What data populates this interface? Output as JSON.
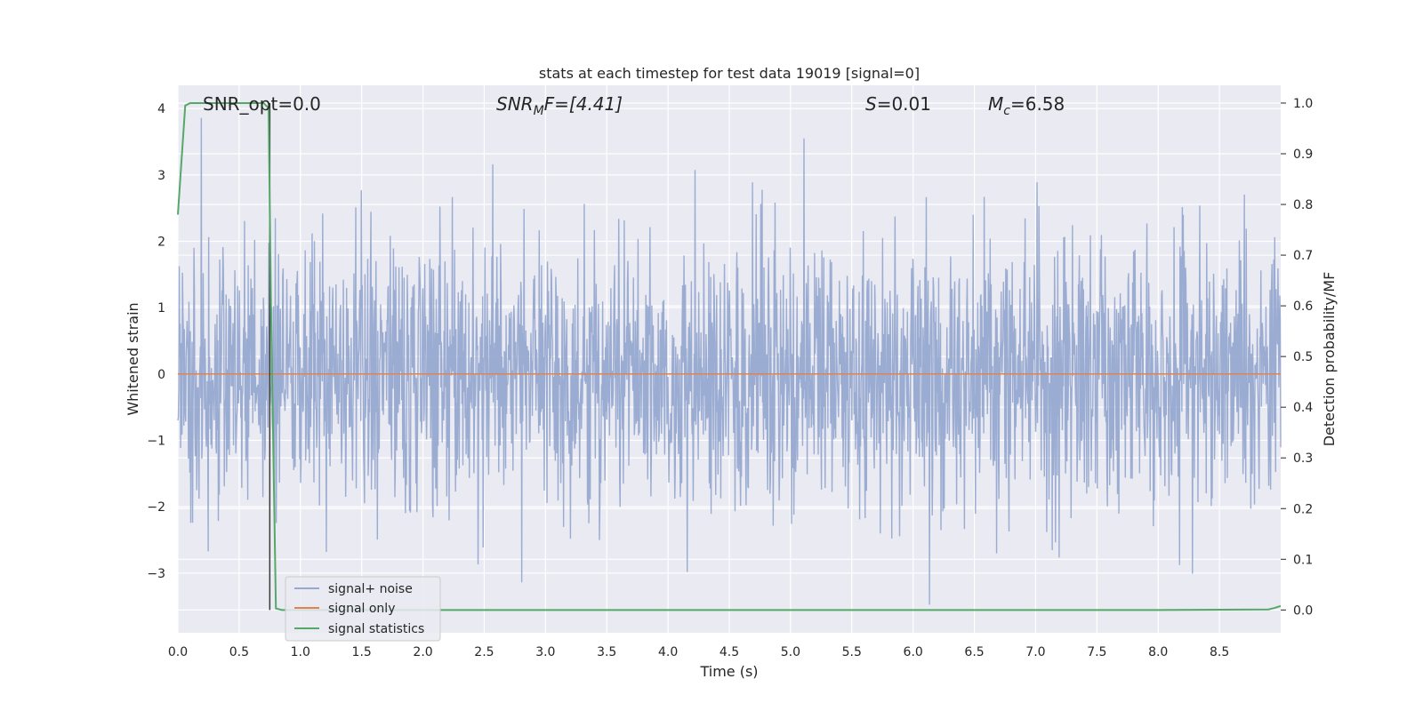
{
  "chart_data": {
    "type": "line",
    "title": "stats at each timestep for test data 19019 [signal=0]",
    "xlabel": "Time (s)",
    "ylabel": "Whitened strain",
    "y2label": "Detection probability/MF",
    "xlim": [
      0.0,
      9.0
    ],
    "ylim": [
      -3.9,
      4.35
    ],
    "y2lim": [
      -0.045,
      1.035
    ],
    "xticks": [
      "0.0",
      "0.5",
      "1.0",
      "1.5",
      "2.0",
      "2.5",
      "3.0",
      "3.5",
      "4.0",
      "4.5",
      "5.0",
      "5.5",
      "6.0",
      "6.5",
      "7.0",
      "7.5",
      "8.0",
      "8.5"
    ],
    "xtick_values": [
      0.0,
      0.5,
      1.0,
      1.5,
      2.0,
      2.5,
      3.0,
      3.5,
      4.0,
      4.5,
      5.0,
      5.5,
      6.0,
      6.5,
      7.0,
      7.5,
      8.0,
      8.5
    ],
    "yticks": [
      "4",
      "3",
      "2",
      "1",
      "0",
      "−1",
      "−2",
      "−3"
    ],
    "ytick_values": [
      4,
      3,
      2,
      1,
      0,
      -1,
      -2,
      -3
    ],
    "y2ticks": [
      "1.0",
      "0.9",
      "0.8",
      "0.7",
      "0.6",
      "0.5",
      "0.4",
      "0.3",
      "0.2",
      "0.1",
      "0.0"
    ],
    "y2tick_values": [
      1.0,
      0.9,
      0.8,
      0.7,
      0.6,
      0.5,
      0.4,
      0.3,
      0.2,
      0.1,
      0.0
    ],
    "grid": true,
    "legend_position": "lower-left",
    "annotations": {
      "snr_opt": "SNR_opt=0.0",
      "snr_mf_main": "SNR",
      "snr_mf_sub": "M",
      "snr_mf_rest": "F=[4.41]",
      "s_main": "S",
      "s_rest": "=0.01",
      "mc_main": "M",
      "mc_sub": "c",
      "mc_rest": "=6.58"
    },
    "series": [
      {
        "name": "signal+ noise",
        "color": "#97a9d0",
        "values": "noise samples, amplitude within approximately -3.6 to 4.0"
      },
      {
        "name": "signal only",
        "color": "#dd8452",
        "x": [
          0.0,
          9.0
        ],
        "y": [
          0.0,
          0.0
        ]
      },
      {
        "name": "signal statistics",
        "color": "#55a868",
        "axis": "right",
        "x": [
          0.0,
          0.06,
          0.1,
          0.2,
          0.5,
          0.7,
          0.74,
          0.76,
          0.8,
          0.85,
          2.5,
          5.0,
          8.0,
          8.9,
          8.95,
          9.0
        ],
        "y": [
          0.78,
          0.995,
          1.0,
          1.0,
          1.0,
          1.0,
          0.99,
          0.6,
          0.003,
          0.0,
          0.0,
          0.0,
          0.0,
          0.001,
          0.004,
          0.008
        ]
      }
    ]
  },
  "colors": {
    "plot_background": "#eaeaf2",
    "grid": "#ffffff",
    "noise": "#97a9d0",
    "signal_only": "#dd8452",
    "statistics": "#55a868",
    "marker_line": "#3b3b3b"
  }
}
